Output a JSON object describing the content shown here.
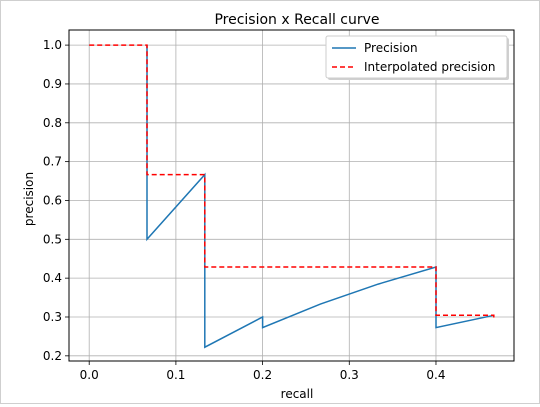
{
  "chart_data": {
    "type": "line",
    "title": "Precision x Recall curve",
    "xlabel": "recall",
    "ylabel": "precision",
    "xlim": [
      -0.0233,
      0.49
    ],
    "ylim": [
      0.1867,
      1.0389
    ],
    "xticks": [
      0.0,
      0.1,
      0.2,
      0.3,
      0.4
    ],
    "xtick_labels": [
      "0.0",
      "0.1",
      "0.2",
      "0.3",
      "0.4"
    ],
    "yticks": [
      0.2,
      0.3,
      0.4,
      0.5,
      0.6,
      0.7,
      0.8,
      0.9,
      1.0
    ],
    "ytick_labels": [
      "0.2",
      "0.3",
      "0.4",
      "0.5",
      "0.6",
      "0.7",
      "0.8",
      "0.9",
      "1.0"
    ],
    "grid": true,
    "legend_position": "top-right",
    "series": [
      {
        "name": "Precision",
        "color": "#1f77b4",
        "style": "solid",
        "x": [
          0.0667,
          0.0667,
          0.1333,
          0.1333,
          0.2,
          0.2,
          0.2667,
          0.3333,
          0.4,
          0.4,
          0.4667
        ],
        "y": [
          1.0,
          0.5,
          0.6667,
          0.2222,
          0.3,
          0.2727,
          0.3333,
          0.3846,
          0.4286,
          0.2727,
          0.3043
        ]
      },
      {
        "name": "Interpolated precision",
        "color": "#ff0000",
        "style": "dashed",
        "x": [
          0.0,
          0.0667,
          0.0667,
          0.1333,
          0.1333,
          0.4,
          0.4,
          0.4667,
          0.4667
        ],
        "y": [
          1.0,
          1.0,
          0.6667,
          0.6667,
          0.4286,
          0.4286,
          0.3043,
          0.3043,
          0.2941
        ]
      }
    ]
  }
}
